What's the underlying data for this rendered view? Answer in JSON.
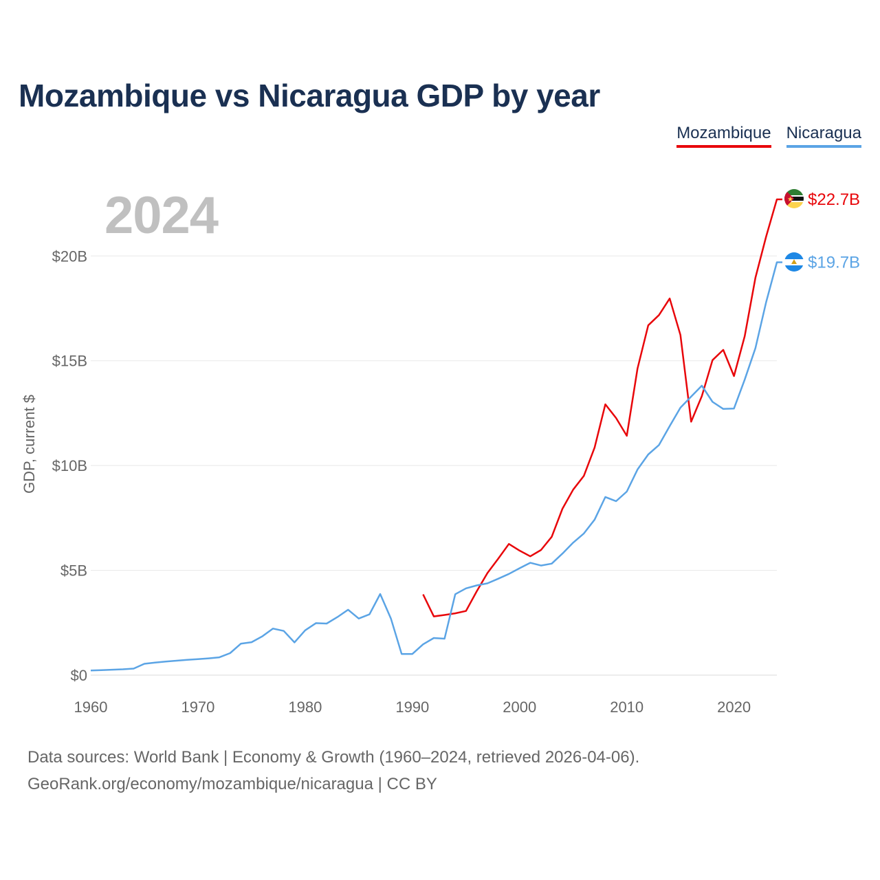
{
  "title": "Mozambique vs Nicaragua GDP by year",
  "year_badge": "2024",
  "legend": [
    {
      "label": "Mozambique",
      "color": "#e8060a"
    },
    {
      "label": "Nicaragua",
      "color": "#5ba4e5"
    }
  ],
  "footer": {
    "line1": "Data sources: World Bank | Economy & Growth (1960–2024, retrieved 2026-04-06).",
    "line2": "GeoRank.org/economy/mozambique/nicaragua | CC BY"
  },
  "chart_data": {
    "type": "line",
    "title": "Mozambique vs Nicaragua GDP by year",
    "xlabel": "",
    "ylabel": "GDP, current $",
    "xlim": [
      1960,
      2024
    ],
    "ylim": [
      0,
      22.7
    ],
    "x_ticks": [
      1960,
      1970,
      1980,
      1990,
      2000,
      2010,
      2020
    ],
    "x_tick_labels": [
      "1960",
      "1970",
      "1980",
      "1990",
      "2000",
      "2010",
      "2020"
    ],
    "y_ticks": [
      0,
      5,
      10,
      15,
      20
    ],
    "y_tick_labels": [
      "$0",
      "$5B",
      "$10B",
      "$15B",
      "$20B"
    ],
    "grid": true,
    "legend_position": "top-right",
    "units": "billions of current US$",
    "series": [
      {
        "name": "Mozambique",
        "color": "#e8060a",
        "end_label": "$22.7B",
        "flag": "mozambique-flag",
        "x": [
          1991,
          1992,
          1993,
          1994,
          1995,
          1996,
          1997,
          1998,
          1999,
          2000,
          2001,
          2002,
          2003,
          2004,
          2005,
          2006,
          2007,
          2008,
          2009,
          2010,
          2011,
          2012,
          2013,
          2014,
          2015,
          2016,
          2017,
          2018,
          2019,
          2020,
          2021,
          2022,
          2023,
          2024
        ],
        "values": [
          3.85,
          2.8,
          2.87,
          2.95,
          3.06,
          4.0,
          4.87,
          5.55,
          6.26,
          5.94,
          5.67,
          5.97,
          6.6,
          7.94,
          8.85,
          9.51,
          10.86,
          12.92,
          12.27,
          11.42,
          14.63,
          16.69,
          17.18,
          17.97,
          16.23,
          12.09,
          13.31,
          15.03,
          15.52,
          14.27,
          16.17,
          18.96,
          20.93,
          22.7
        ]
      },
      {
        "name": "Nicaragua",
        "color": "#5ba4e5",
        "end_label": "$19.7B",
        "flag": "nicaragua-flag",
        "x": [
          1960,
          1961,
          1962,
          1963,
          1964,
          1965,
          1966,
          1967,
          1968,
          1969,
          1970,
          1971,
          1972,
          1973,
          1974,
          1975,
          1976,
          1977,
          1978,
          1979,
          1980,
          1981,
          1982,
          1983,
          1984,
          1985,
          1986,
          1987,
          1988,
          1989,
          1990,
          1991,
          1992,
          1993,
          1994,
          1995,
          1996,
          1997,
          1998,
          1999,
          2000,
          2001,
          2002,
          2003,
          2004,
          2005,
          2006,
          2007,
          2008,
          2009,
          2010,
          2011,
          2012,
          2013,
          2014,
          2015,
          2016,
          2017,
          2018,
          2019,
          2020,
          2021,
          2022,
          2023,
          2024
        ],
        "values": [
          0.22,
          0.24,
          0.26,
          0.28,
          0.31,
          0.54,
          0.6,
          0.65,
          0.69,
          0.73,
          0.76,
          0.8,
          0.85,
          1.05,
          1.5,
          1.57,
          1.85,
          2.22,
          2.11,
          1.56,
          2.14,
          2.48,
          2.46,
          2.77,
          3.12,
          2.7,
          2.9,
          3.87,
          2.7,
          1.01,
          1.01,
          1.47,
          1.77,
          1.74,
          3.86,
          4.14,
          4.28,
          4.38,
          4.6,
          4.83,
          5.1,
          5.36,
          5.23,
          5.32,
          5.8,
          6.32,
          6.76,
          7.42,
          8.5,
          8.3,
          8.76,
          9.81,
          10.53,
          10.98,
          11.88,
          12.76,
          13.29,
          13.81,
          13.04,
          12.7,
          12.72,
          14.1,
          15.6,
          17.8,
          19.7
        ]
      }
    ]
  }
}
